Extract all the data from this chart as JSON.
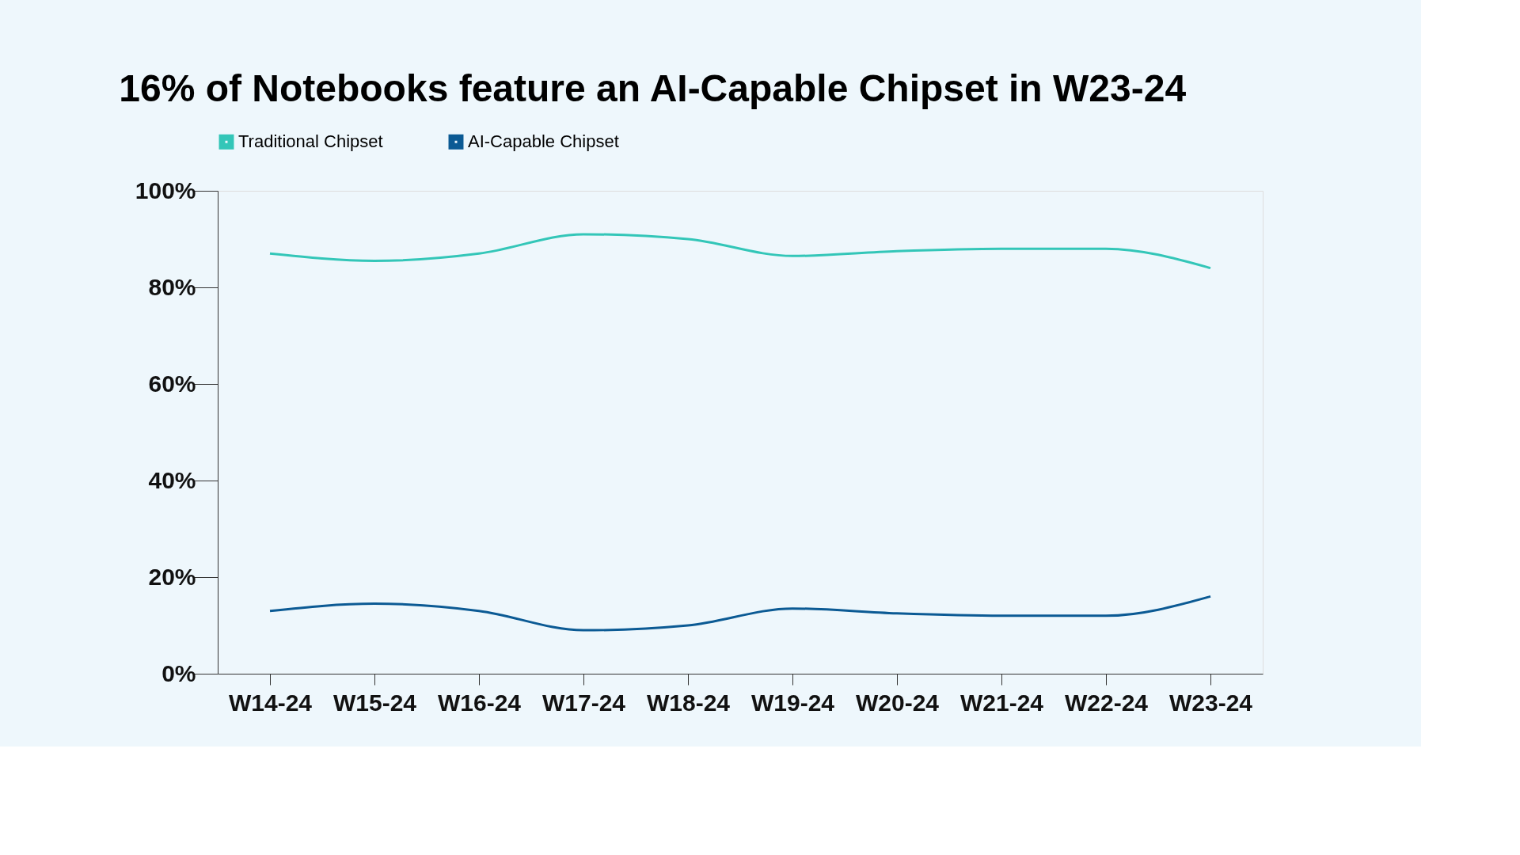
{
  "chart_data": {
    "type": "line",
    "title": "16% of Notebooks feature an AI-Capable Chipset in W23-24",
    "categories": [
      "W14-24",
      "W15-24",
      "W16-24",
      "W17-24",
      "W18-24",
      "W19-24",
      "W20-24",
      "W21-24",
      "W22-24",
      "W23-24"
    ],
    "series": [
      {
        "name": "Traditional Chipset",
        "color": "#33c6b8",
        "values": [
          87,
          85.5,
          87,
          91,
          90,
          86.5,
          87.5,
          88,
          88,
          84
        ]
      },
      {
        "name": "AI-Capable Chipset",
        "color": "#0b5a94",
        "values": [
          13,
          14.5,
          13,
          9,
          10,
          13.5,
          12.5,
          12,
          12,
          16
        ]
      }
    ],
    "ylim": [
      0,
      100
    ],
    "yticks": [
      {
        "value": 0,
        "label": "0%"
      },
      {
        "value": 20,
        "label": "20%"
      },
      {
        "value": 40,
        "label": "40%"
      },
      {
        "value": 60,
        "label": "60%"
      },
      {
        "value": 80,
        "label": "80%"
      },
      {
        "value": 100,
        "label": "100%"
      }
    ],
    "grid": false,
    "legend": "top",
    "marker": "none",
    "line_style": "solid"
  }
}
